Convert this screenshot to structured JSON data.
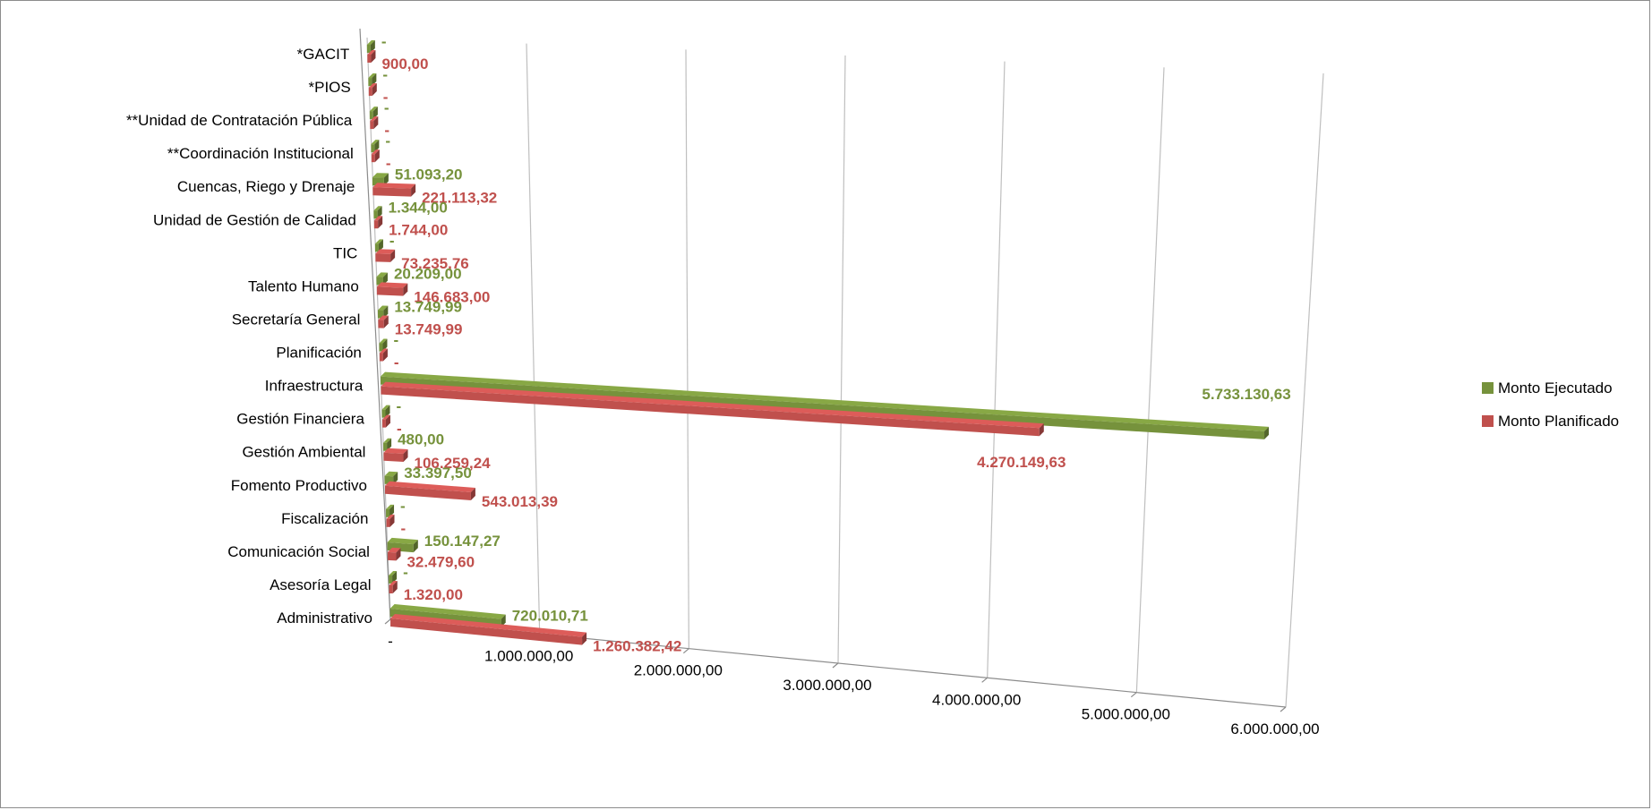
{
  "chart_data": {
    "type": "bar",
    "orientation": "horizontal",
    "three_d": true,
    "categories": [
      "*GACIT",
      "*PIOS",
      "**Unidad de Contratación Pública",
      "**Coordinación Institucional",
      "Cuencas, Riego y Drenaje",
      "Unidad de Gestión de Calidad",
      "TIC",
      "Talento Humano",
      "Secretaría General",
      "Planificación",
      "Infraestructura",
      "Gestión Financiera",
      "Gestión Ambiental",
      "Fomento Productivo",
      "Fiscalización",
      "Comunicación Social",
      "Asesoría Legal",
      "Administrativo"
    ],
    "series": [
      {
        "name": "Monto Ejecutado",
        "color": "#76923c",
        "values": [
          0,
          0,
          0,
          0,
          51093.2,
          1344.0,
          0,
          20209.0,
          13749.99,
          0,
          5733130.63,
          0,
          480.0,
          33397.5,
          0,
          150147.27,
          0,
          720010.71
        ],
        "labels": [
          "-",
          "-",
          "-",
          "-",
          "51.093,20",
          "1.344,00",
          "-",
          "20.209,00",
          "13.749,99",
          "-",
          "5.733.130,63",
          "-",
          "480,00",
          "33.397,50",
          "-",
          "150.147,27",
          "-",
          "720.010,71"
        ]
      },
      {
        "name": "Monto Planificado",
        "color": "#c0504d",
        "values": [
          900.0,
          0,
          0,
          0,
          221113.32,
          1744.0,
          73235.76,
          146683.0,
          13749.99,
          0,
          4270149.63,
          0,
          106259.24,
          543013.39,
          0,
          32479.6,
          1320.0,
          1260382.42
        ],
        "labels": [
          "900,00",
          "-",
          "-",
          "-",
          "221.113,32",
          "1.744,00",
          "73.235,76",
          "146.683,00",
          "13.749,99",
          "-",
          "4.270.149,63",
          "-",
          "106.259,24",
          "543.013,39",
          "-",
          "32.479,60",
          "1.320,00",
          "1.260.382,42"
        ]
      }
    ],
    "x_ticks": [
      {
        "value": 0,
        "label": "-"
      },
      {
        "value": 1000000,
        "label": "1.000.000,00"
      },
      {
        "value": 2000000,
        "label": "2.000.000,00"
      },
      {
        "value": 3000000,
        "label": "3.000.000,00"
      },
      {
        "value": 4000000,
        "label": "4.000.000,00"
      },
      {
        "value": 5000000,
        "label": "5.000.000,00"
      },
      {
        "value": 6000000,
        "label": "6.000.000,00"
      }
    ],
    "xlim": [
      0,
      6000000
    ],
    "grid": true,
    "legend_position": "right"
  }
}
